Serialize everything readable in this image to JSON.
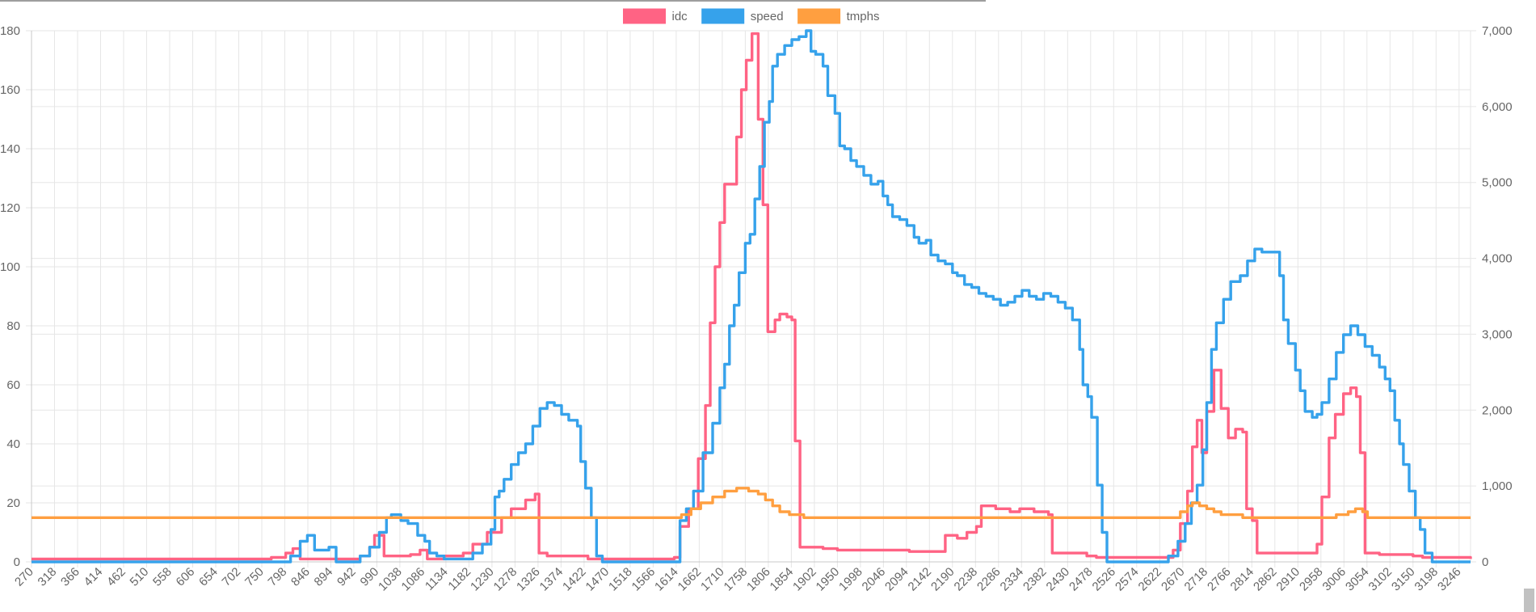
{
  "chart_data": {
    "type": "line",
    "legend_position": "top",
    "grid": true,
    "x_ticks": [
      "270",
      "318",
      "366",
      "414",
      "462",
      "510",
      "558",
      "606",
      "654",
      "702",
      "750",
      "798",
      "846",
      "894",
      "942",
      "990",
      "1038",
      "1086",
      "1134",
      "1182",
      "1230",
      "1278",
      "1326",
      "1374",
      "1422",
      "1470",
      "1518",
      "1566",
      "1614",
      "1662",
      "1710",
      "1758",
      "1806",
      "1854",
      "1902",
      "1950",
      "1998",
      "2046",
      "2094",
      "2142",
      "2190",
      "2238",
      "2286",
      "2334",
      "2382",
      "2430",
      "2478",
      "2526",
      "2574",
      "2622",
      "2670",
      "2718",
      "2766",
      "2814",
      "2862",
      "2910",
      "2958",
      "3006",
      "3054",
      "3102",
      "3150",
      "3198",
      "3246"
    ],
    "xlim": [
      270,
      3270
    ],
    "y_left": {
      "ylim": [
        0,
        180
      ],
      "ticks": [
        "0",
        "20",
        "40",
        "60",
        "80",
        "100",
        "120",
        "140",
        "160",
        "180"
      ]
    },
    "y_right": {
      "ylim": [
        0,
        7000
      ],
      "ticks": [
        "0",
        "1,000",
        "2,000",
        "3,000",
        "4,000",
        "5,000",
        "6,000",
        "7,000"
      ]
    },
    "series": [
      {
        "name": "idc",
        "color": "#ff6384",
        "axis": "left",
        "points": [
          [
            270,
            1
          ],
          [
            740,
            1
          ],
          [
            770,
            1.5
          ],
          [
            800,
            3
          ],
          [
            815,
            4.5
          ],
          [
            830,
            1
          ],
          [
            930,
            1
          ],
          [
            955,
            2
          ],
          [
            975,
            5
          ],
          [
            985,
            9
          ],
          [
            1005,
            2
          ],
          [
            1060,
            2.5
          ],
          [
            1080,
            4
          ],
          [
            1095,
            1
          ],
          [
            1130,
            2
          ],
          [
            1170,
            3
          ],
          [
            1190,
            6
          ],
          [
            1220,
            10
          ],
          [
            1250,
            15
          ],
          [
            1270,
            18
          ],
          [
            1300,
            21
          ],
          [
            1320,
            23
          ],
          [
            1328,
            3
          ],
          [
            1345,
            2
          ],
          [
            1420,
            2
          ],
          [
            1430,
            1
          ],
          [
            1590,
            1
          ],
          [
            1610,
            1.5
          ],
          [
            1622,
            12
          ],
          [
            1640,
            18
          ],
          [
            1660,
            35
          ],
          [
            1675,
            53
          ],
          [
            1685,
            81
          ],
          [
            1695,
            100
          ],
          [
            1705,
            115
          ],
          [
            1715,
            128
          ],
          [
            1740,
            144
          ],
          [
            1750,
            160
          ],
          [
            1760,
            170
          ],
          [
            1772,
            179
          ],
          [
            1785,
            150
          ],
          [
            1795,
            121
          ],
          [
            1805,
            78
          ],
          [
            1820,
            82
          ],
          [
            1830,
            84
          ],
          [
            1845,
            83
          ],
          [
            1855,
            82
          ],
          [
            1862,
            41
          ],
          [
            1872,
            5
          ],
          [
            1900,
            5
          ],
          [
            1920,
            4.5
          ],
          [
            1950,
            4
          ],
          [
            2000,
            4
          ],
          [
            2100,
            3.5
          ],
          [
            2150,
            3.5
          ],
          [
            2175,
            9
          ],
          [
            2200,
            8
          ],
          [
            2220,
            10
          ],
          [
            2240,
            12
          ],
          [
            2250,
            19
          ],
          [
            2280,
            18
          ],
          [
            2310,
            17
          ],
          [
            2330,
            18
          ],
          [
            2360,
            17
          ],
          [
            2390,
            16
          ],
          [
            2398,
            3
          ],
          [
            2440,
            3
          ],
          [
            2470,
            2
          ],
          [
            2490,
            1.5
          ],
          [
            2620,
            1.5
          ],
          [
            2650,
            4
          ],
          [
            2665,
            13
          ],
          [
            2680,
            24
          ],
          [
            2690,
            39
          ],
          [
            2700,
            48
          ],
          [
            2710,
            37
          ],
          [
            2720,
            51
          ],
          [
            2735,
            65
          ],
          [
            2750,
            52
          ],
          [
            2765,
            42
          ],
          [
            2780,
            45
          ],
          [
            2795,
            44
          ],
          [
            2803,
            18
          ],
          [
            2815,
            14
          ],
          [
            2825,
            3
          ],
          [
            2920,
            3
          ],
          [
            2950,
            6
          ],
          [
            2960,
            22
          ],
          [
            2975,
            42
          ],
          [
            2988,
            50
          ],
          [
            3005,
            57
          ],
          [
            3020,
            59
          ],
          [
            3032,
            56
          ],
          [
            3040,
            37
          ],
          [
            3050,
            3
          ],
          [
            3080,
            2.5
          ],
          [
            3150,
            2
          ],
          [
            3170,
            1.5
          ],
          [
            3270,
            1
          ]
        ]
      },
      {
        "name": "speed",
        "color": "#36a2eb",
        "axis": "left",
        "points": [
          [
            270,
            0
          ],
          [
            800,
            0
          ],
          [
            810,
            2
          ],
          [
            830,
            7
          ],
          [
            845,
            9
          ],
          [
            860,
            4
          ],
          [
            890,
            5
          ],
          [
            905,
            0
          ],
          [
            930,
            0
          ],
          [
            955,
            2
          ],
          [
            975,
            5
          ],
          [
            995,
            10
          ],
          [
            1010,
            15
          ],
          [
            1020,
            16
          ],
          [
            1040,
            14
          ],
          [
            1055,
            13
          ],
          [
            1075,
            9
          ],
          [
            1090,
            7
          ],
          [
            1100,
            3
          ],
          [
            1115,
            2
          ],
          [
            1130,
            1
          ],
          [
            1160,
            1
          ],
          [
            1190,
            3
          ],
          [
            1210,
            6
          ],
          [
            1228,
            11
          ],
          [
            1236,
            22
          ],
          [
            1245,
            24
          ],
          [
            1255,
            28
          ],
          [
            1270,
            33
          ],
          [
            1285,
            37
          ],
          [
            1300,
            40
          ],
          [
            1315,
            46
          ],
          [
            1330,
            52
          ],
          [
            1345,
            54
          ],
          [
            1360,
            53
          ],
          [
            1375,
            50
          ],
          [
            1390,
            48
          ],
          [
            1408,
            46
          ],
          [
            1415,
            34
          ],
          [
            1425,
            25
          ],
          [
            1437,
            15
          ],
          [
            1448,
            2
          ],
          [
            1460,
            0
          ],
          [
            1610,
            0
          ],
          [
            1622,
            14
          ],
          [
            1635,
            18
          ],
          [
            1650,
            24
          ],
          [
            1670,
            37
          ],
          [
            1690,
            47
          ],
          [
            1705,
            59
          ],
          [
            1715,
            67
          ],
          [
            1725,
            80
          ],
          [
            1735,
            87
          ],
          [
            1745,
            98
          ],
          [
            1758,
            108
          ],
          [
            1768,
            111
          ],
          [
            1778,
            123
          ],
          [
            1788,
            134
          ],
          [
            1798,
            149
          ],
          [
            1808,
            156
          ],
          [
            1815,
            168
          ],
          [
            1825,
            172
          ],
          [
            1840,
            175
          ],
          [
            1855,
            177
          ],
          [
            1870,
            178
          ],
          [
            1885,
            180
          ],
          [
            1895,
            173
          ],
          [
            1905,
            172
          ],
          [
            1920,
            168
          ],
          [
            1930,
            158
          ],
          [
            1945,
            152
          ],
          [
            1955,
            141
          ],
          [
            1965,
            140
          ],
          [
            1978,
            136
          ],
          [
            1990,
            134
          ],
          [
            2005,
            131
          ],
          [
            2020,
            128
          ],
          [
            2035,
            129
          ],
          [
            2045,
            124
          ],
          [
            2055,
            121
          ],
          [
            2065,
            117
          ],
          [
            2080,
            116
          ],
          [
            2095,
            114
          ],
          [
            2110,
            110
          ],
          [
            2120,
            108
          ],
          [
            2135,
            109
          ],
          [
            2145,
            104
          ],
          [
            2160,
            102
          ],
          [
            2175,
            101
          ],
          [
            2190,
            98
          ],
          [
            2200,
            97
          ],
          [
            2215,
            94
          ],
          [
            2230,
            93
          ],
          [
            2245,
            91
          ],
          [
            2260,
            90
          ],
          [
            2275,
            89
          ],
          [
            2290,
            87
          ],
          [
            2305,
            88
          ],
          [
            2320,
            90
          ],
          [
            2335,
            92
          ],
          [
            2350,
            90
          ],
          [
            2365,
            89
          ],
          [
            2380,
            91
          ],
          [
            2395,
            90
          ],
          [
            2410,
            88
          ],
          [
            2425,
            86
          ],
          [
            2440,
            82
          ],
          [
            2455,
            72
          ],
          [
            2462,
            60
          ],
          [
            2472,
            56
          ],
          [
            2480,
            49
          ],
          [
            2492,
            26
          ],
          [
            2502,
            10
          ],
          [
            2512,
            0
          ],
          [
            2620,
            0
          ],
          [
            2640,
            2
          ],
          [
            2660,
            7
          ],
          [
            2675,
            13
          ],
          [
            2688,
            20
          ],
          [
            2700,
            26
          ],
          [
            2712,
            38
          ],
          [
            2720,
            54
          ],
          [
            2730,
            72
          ],
          [
            2740,
            81
          ],
          [
            2755,
            89
          ],
          [
            2770,
            95
          ],
          [
            2790,
            97
          ],
          [
            2805,
            102
          ],
          [
            2820,
            106
          ],
          [
            2835,
            105
          ],
          [
            2860,
            105
          ],
          [
            2872,
            97
          ],
          [
            2880,
            82
          ],
          [
            2890,
            74
          ],
          [
            2905,
            65
          ],
          [
            2915,
            58
          ],
          [
            2925,
            51
          ],
          [
            2940,
            49
          ],
          [
            2950,
            50
          ],
          [
            2960,
            54
          ],
          [
            2975,
            62
          ],
          [
            2990,
            71
          ],
          [
            3005,
            77
          ],
          [
            3020,
            80
          ],
          [
            3035,
            77
          ],
          [
            3050,
            73
          ],
          [
            3065,
            70
          ],
          [
            3080,
            66
          ],
          [
            3092,
            62
          ],
          [
            3102,
            58
          ],
          [
            3112,
            48
          ],
          [
            3122,
            40
          ],
          [
            3130,
            33
          ],
          [
            3142,
            24
          ],
          [
            3155,
            15
          ],
          [
            3165,
            11
          ],
          [
            3175,
            3
          ],
          [
            3190,
            0
          ],
          [
            3270,
            0
          ]
        ]
      },
      {
        "name": "tmphs",
        "color": "#ff9f40",
        "axis": "left",
        "points": [
          [
            270,
            15
          ],
          [
            1610,
            15
          ],
          [
            1625,
            16
          ],
          [
            1645,
            18
          ],
          [
            1665,
            20
          ],
          [
            1690,
            22
          ],
          [
            1715,
            24
          ],
          [
            1740,
            25
          ],
          [
            1765,
            24
          ],
          [
            1785,
            23
          ],
          [
            1800,
            21
          ],
          [
            1815,
            19
          ],
          [
            1830,
            17
          ],
          [
            1850,
            16
          ],
          [
            1870,
            16
          ],
          [
            1880,
            15
          ],
          [
            2650,
            15
          ],
          [
            2665,
            17
          ],
          [
            2680,
            19
          ],
          [
            2690,
            20
          ],
          [
            2705,
            19
          ],
          [
            2720,
            18
          ],
          [
            2735,
            17
          ],
          [
            2750,
            16
          ],
          [
            2780,
            16
          ],
          [
            2795,
            15
          ],
          [
            2960,
            15
          ],
          [
            2990,
            16
          ],
          [
            3015,
            17
          ],
          [
            3030,
            18
          ],
          [
            3045,
            17
          ],
          [
            3055,
            15
          ],
          [
            3270,
            15
          ]
        ]
      }
    ]
  }
}
